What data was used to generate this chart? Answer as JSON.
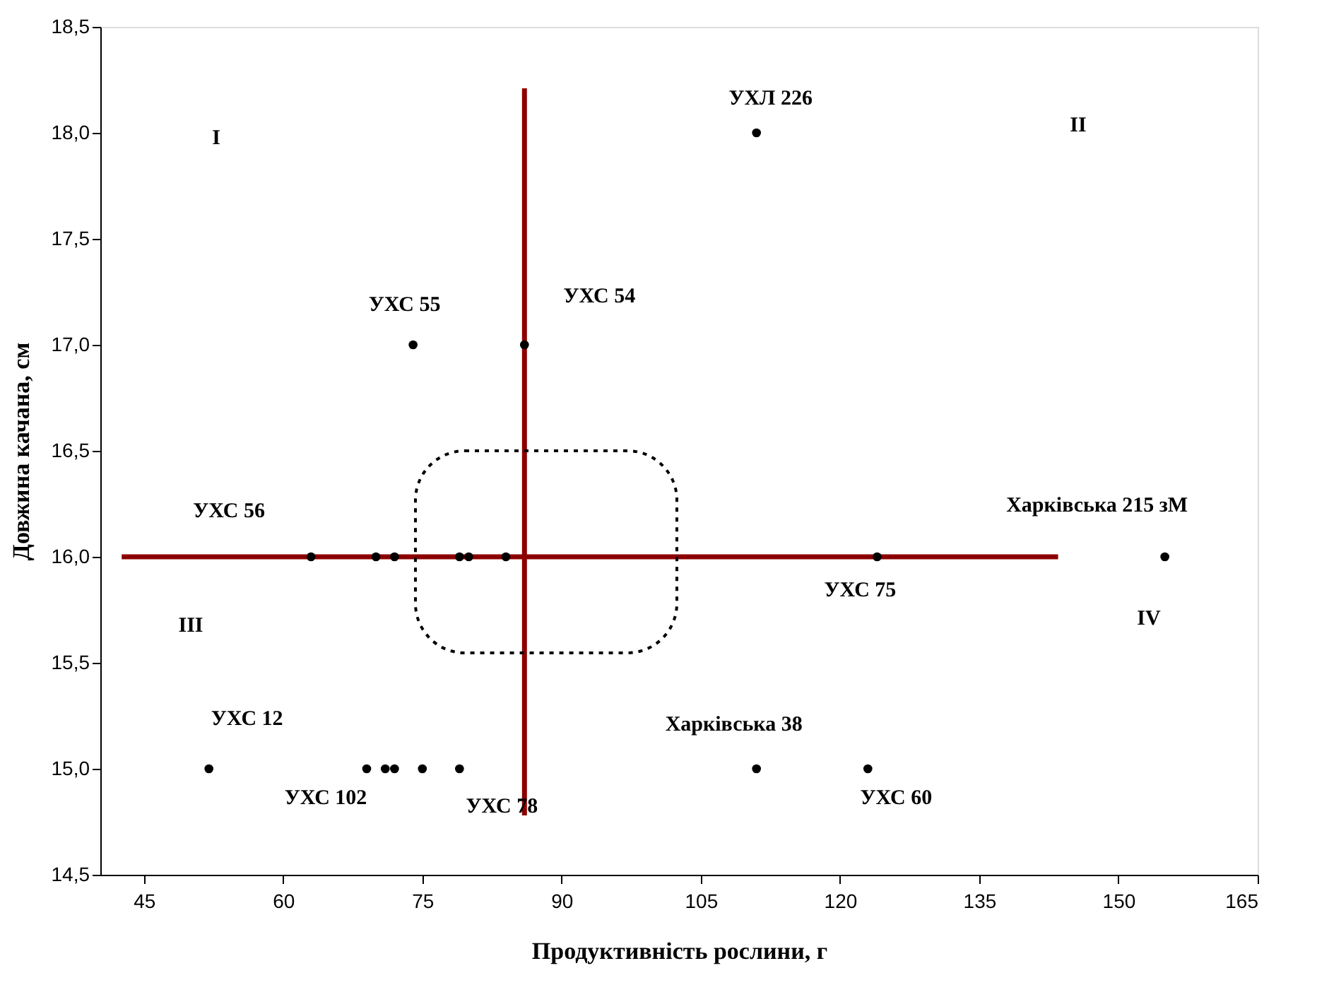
{
  "chart_data": {
    "type": "scatter",
    "xlabel": "Продуктивність рослини, г",
    "ylabel": "Довжина качана, см",
    "xlim": [
      40.3,
      165
    ],
    "ylim": [
      14.5,
      18.5
    ],
    "xticks": [
      45,
      60,
      75,
      90,
      105,
      120,
      135,
      150,
      165
    ],
    "yticks": [
      {
        "value": 14.5,
        "label": "14,5"
      },
      {
        "value": 15.0,
        "label": "15,0"
      },
      {
        "value": 15.5,
        "label": "15,5"
      },
      {
        "value": 16.0,
        "label": "16,0"
      },
      {
        "value": 16.5,
        "label": "16,5"
      },
      {
        "value": 17.0,
        "label": "17,0"
      },
      {
        "value": 17.5,
        "label": "17,5"
      },
      {
        "value": 18.0,
        "label": "18,0"
      },
      {
        "value": 18.5,
        "label": "18,5"
      }
    ],
    "grid": false,
    "legend": false,
    "marker": "circle",
    "series": [
      {
        "type": "line",
        "color": "#8b0000",
        "marker": "none",
        "line_style": "solid",
        "x": [
          86,
          86
        ],
        "values": [
          14.78,
          18.21
        ]
      },
      {
        "type": "line",
        "color": "#8b0000",
        "marker": "none",
        "line_style": "solid",
        "x": [
          42.6,
          143.5
        ],
        "values": [
          16,
          16
        ]
      },
      {
        "color": "#000000",
        "x": [
          111,
          74,
          86,
          63,
          70,
          72,
          79,
          80,
          84,
          124,
          155,
          52,
          69,
          71,
          72,
          75,
          79,
          111,
          123
        ],
        "values": [
          18,
          17,
          17,
          16,
          16,
          16,
          16,
          16,
          16,
          16,
          16,
          15,
          15,
          15,
          15,
          15,
          15,
          15,
          15
        ]
      }
    ],
    "annotations": [
      {
        "text": "УХЛ 226",
        "x": 111,
        "y": 18
      },
      {
        "text": "УХС 55",
        "x": 74,
        "y": 17
      },
      {
        "text": "УХС 54",
        "x": 86,
        "y": 17
      },
      {
        "text": "УХС 56",
        "x": 63,
        "y": 16
      },
      {
        "text": "УХС 75",
        "x": 124,
        "y": 16
      },
      {
        "text": "Харківська 215 зМ",
        "x": 155,
        "y": 16
      },
      {
        "text": "УХС 12",
        "x": 52,
        "y": 15
      },
      {
        "text": "УХС 102",
        "x": 69,
        "y": 15
      },
      {
        "text": "УХС 78",
        "x": 79,
        "y": 15
      },
      {
        "text": "Харківська 38",
        "x": 111,
        "y": 15
      },
      {
        "text": "УХС 60",
        "x": 123,
        "y": 15
      },
      "I",
      "II",
      "III",
      "IV"
    ]
  }
}
